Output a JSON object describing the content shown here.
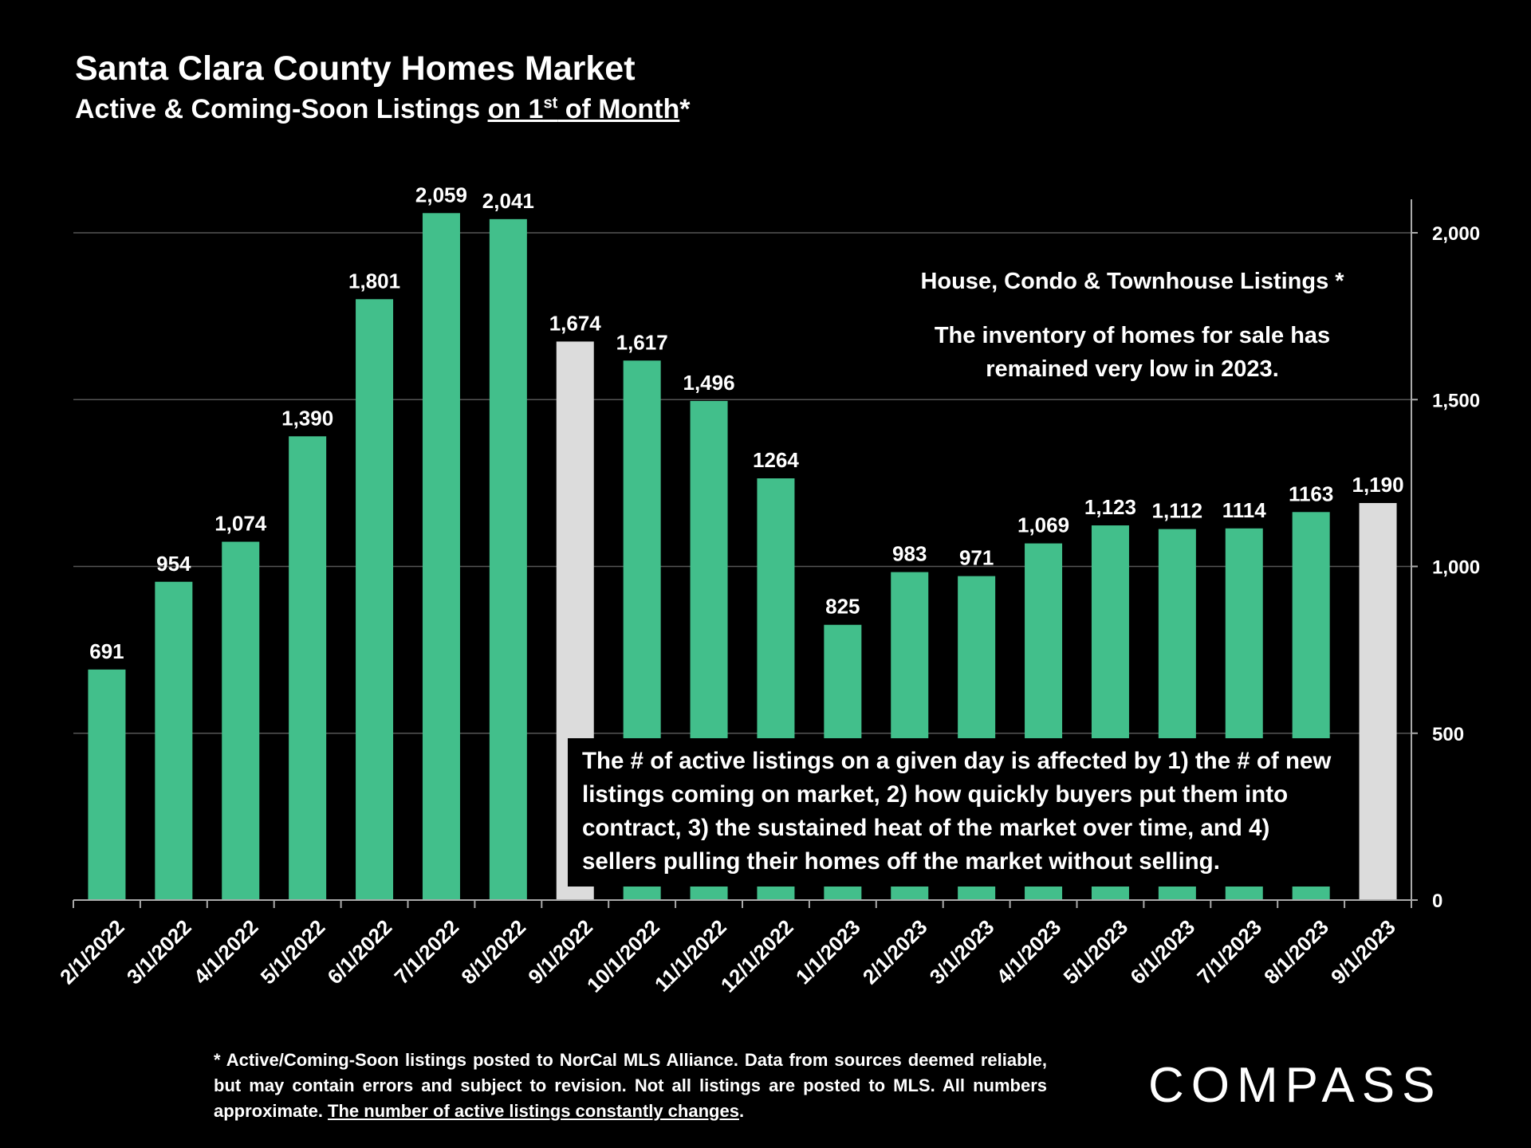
{
  "header": {
    "title": "Santa Clara County Homes Market",
    "subtitle_prefix": "Active & Coming-Soon Listings ",
    "subtitle_u1": "on 1",
    "subtitle_sup": "st",
    "subtitle_u2": " of Month",
    "subtitle_suffix": "*"
  },
  "annotation_right": {
    "heading": "House, Condo & Townhouse Listings *",
    "body": "The inventory of homes for sale has remained very low in 2023."
  },
  "callout": "The # of active listings on a given day is affected by 1) the # of new listings coming on market, 2) how quickly buyers put them into contract, 3) the sustained heat of the market over time, and 4) sellers pulling their homes off the market without selling.",
  "footnote": {
    "text": "* Active/Coming-Soon listings posted to NorCal MLS Alliance.  Data from sources deemed reliable, but may contain errors and subject to revision.  Not all listings are posted to MLS. All numbers approximate. ",
    "underlined": "The number of active listings constantly changes",
    "end": "."
  },
  "logo": {
    "text": "COMPASS"
  },
  "colors": {
    "bar": "#42bf8b",
    "highlight": "#dcdcdc",
    "background": "#000000",
    "grid": "#555555"
  },
  "chart_data": {
    "type": "bar",
    "title": "Santa Clara County Homes Market",
    "subtitle": "Active & Coming-Soon Listings on 1st of Month*",
    "categories": [
      "2/1/2022",
      "3/1/2022",
      "4/1/2022",
      "5/1/2022",
      "6/1/2022",
      "7/1/2022",
      "8/1/2022",
      "9/1/2022",
      "10/1/2022",
      "11/1/2022",
      "12/1/2022",
      "1/1/2023",
      "2/1/2023",
      "3/1/2023",
      "4/1/2023",
      "5/1/2023",
      "6/1/2023",
      "7/1/2023",
      "8/1/2023",
      "9/1/2023"
    ],
    "values": [
      691,
      954,
      1074,
      1390,
      1801,
      2059,
      2041,
      1674,
      1617,
      1496,
      1264,
      825,
      983,
      971,
      1069,
      1123,
      1112,
      1114,
      1163,
      1190
    ],
    "value_labels": [
      "691",
      "954",
      "1,074",
      "1,390",
      "1,801",
      "2,059",
      "2,041",
      "1,674",
      "1,617",
      "1,496",
      "1264",
      "825",
      "983",
      "971",
      "1,069",
      "1,123",
      "1,112",
      "1114",
      "1163",
      "1,190"
    ],
    "highlighted": [
      false,
      false,
      false,
      false,
      false,
      false,
      false,
      true,
      false,
      false,
      false,
      false,
      false,
      false,
      false,
      false,
      false,
      false,
      false,
      true
    ],
    "yaxis": {
      "side": "right",
      "ticks": [
        0,
        500,
        1000,
        1500,
        2000
      ],
      "tick_labels": [
        "0",
        "500",
        "1,000",
        "1,500",
        "2,000"
      ]
    },
    "ylim": [
      0,
      2000
    ],
    "grid": true,
    "xlabel": "",
    "ylabel": ""
  }
}
